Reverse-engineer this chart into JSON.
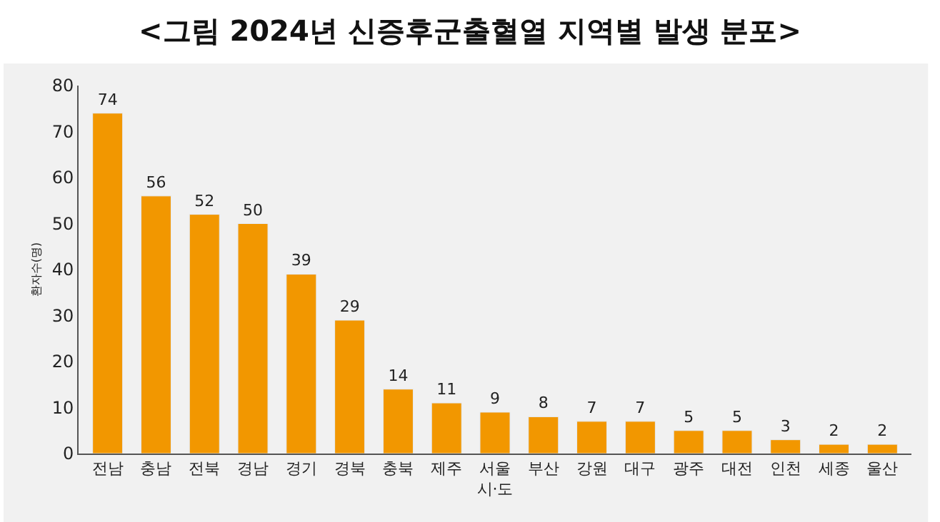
{
  "chart_data": {
    "type": "bar",
    "title": "<그림 2024년 신증후군출혈열 지역별 발생 분포>",
    "xlabel": "시·도",
    "ylabel": "환자수(명)",
    "categories": [
      "전남",
      "충남",
      "전북",
      "경남",
      "경기",
      "경북",
      "충북",
      "제주",
      "서울",
      "부산",
      "강원",
      "대구",
      "광주",
      "대전",
      "인천",
      "세종",
      "울산"
    ],
    "values": [
      74,
      56,
      52,
      50,
      39,
      29,
      14,
      11,
      9,
      8,
      7,
      7,
      5,
      5,
      3,
      2,
      2
    ],
    "color": "#f29700",
    "ylim": [
      0,
      80
    ],
    "yticks": [
      0,
      10,
      20,
      30,
      40,
      50,
      60,
      70,
      80
    ],
    "data_labels": true,
    "grid": false,
    "legend": false
  }
}
